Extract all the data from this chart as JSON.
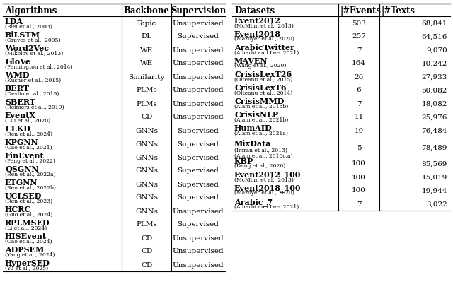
{
  "left_table": {
    "headers": [
      "Algorithms",
      "Backbone",
      "Supervision"
    ],
    "rows": [
      [
        "LDA",
        "(Blei et al., 2003)",
        "Topic",
        "Unsupervised"
      ],
      [
        "BiLSTM",
        "(Graves et al., 2005)",
        "DL",
        "Supervised"
      ],
      [
        "Word2Vec",
        "(Mikolov et al., 2013)",
        "WE",
        "Unsupervised"
      ],
      [
        "GloVe",
        "(Pennington et al., 2014)",
        "WE",
        "Unsupervised"
      ],
      [
        "WMD",
        "(Kusner et al., 2015)",
        "Similarity",
        "Unsupervised"
      ],
      [
        "BERT",
        "(Devlin et al., 2019)",
        "PLMs",
        "Unsupervised"
      ],
      [
        "SBERT",
        "(Reimers et al., 2019)",
        "PLMs",
        "Unsupervised"
      ],
      [
        "EventX",
        "(Liu et al., 2020)",
        "CD",
        "Unsupervised"
      ],
      [
        "CLKD",
        "(Ren et al., 2024)",
        "GNNs",
        "Supervised"
      ],
      [
        "KPGNN",
        "(Cao et al., 2021)",
        "GNNs",
        "Supervised"
      ],
      [
        "FinEvent",
        "(Peng et al., 2022)",
        "GNNs",
        "Supervised"
      ],
      [
        "QSGNN",
        "(Ren et al., 2022a)",
        "GNNs",
        "Supervised"
      ],
      [
        "ETGNN",
        "(Ren et al., 2022b)",
        "GNNs",
        "Supervised"
      ],
      [
        "UCLSED",
        "(Ren et al., 2023)",
        "GNNs",
        "Supervised"
      ],
      [
        "HCRC",
        "(Guo et al., 2024)",
        "GNNs",
        "Unsupervised"
      ],
      [
        "RPLMSED",
        "(Li et al., 2024)",
        "PLMs",
        "Supervised"
      ],
      [
        "HISEvent",
        "(Cao et al., 2024)",
        "CD",
        "Unsupervised"
      ],
      [
        "ADPSEM",
        "(Yang et al., 2024)",
        "CD",
        "Unsupervised"
      ],
      [
        "HyperSED",
        "(Yu et al., 2025)",
        "CD",
        "Unsupervised"
      ]
    ]
  },
  "right_table": {
    "headers": [
      "Datasets",
      "#Events",
      "#Texts"
    ],
    "rows": [
      [
        "Event2012",
        "(McMinn et al., 2013)",
        "503",
        "68,841"
      ],
      [
        "Event2018",
        "(Mazoyer et al., 2020)",
        "257",
        "64,516"
      ],
      [
        "ArabicTwitter",
        "(Alharbi and Lee, 2021)",
        "7",
        "9,070"
      ],
      [
        "MAVEN",
        "(Wang et al., 2020)",
        "164",
        "10,242"
      ],
      [
        "CrisisLexT26",
        "(Olteanu et al., 2015)",
        "26",
        "27,933"
      ],
      [
        "CrisisLexT6",
        "(Olteanu et al., 2014)",
        "6",
        "60,082"
      ],
      [
        "CrisisMMD",
        "(Alam et al., 2018b)",
        "7",
        "18,082"
      ],
      [
        "CrisisNLP",
        "(Alam et al., 2021b)",
        "11",
        "25,976"
      ],
      [
        "HumAID",
        "(Alam et al., 2021a)",
        "19",
        "76,484"
      ],
      [
        "MixData",
        "(Imran et al., 2013)",
        "(Alam et al., 2018c,a)",
        "5",
        "78,489"
      ],
      [
        "KBP",
        "(Deng et al., 2020)",
        "100",
        "85,569"
      ],
      [
        "Event2012_100",
        "(McMinn et al., 2013)",
        "100",
        "15,019"
      ],
      [
        "Event2018_100",
        "(Mazoyer et al., 2020)",
        "100",
        "19,944"
      ],
      [
        "Arabic_7",
        "(Alharbi and Lee, 2021)",
        "7",
        "3,022"
      ]
    ]
  },
  "fig_w": 6.4,
  "fig_h": 4.1,
  "dpi": 100
}
